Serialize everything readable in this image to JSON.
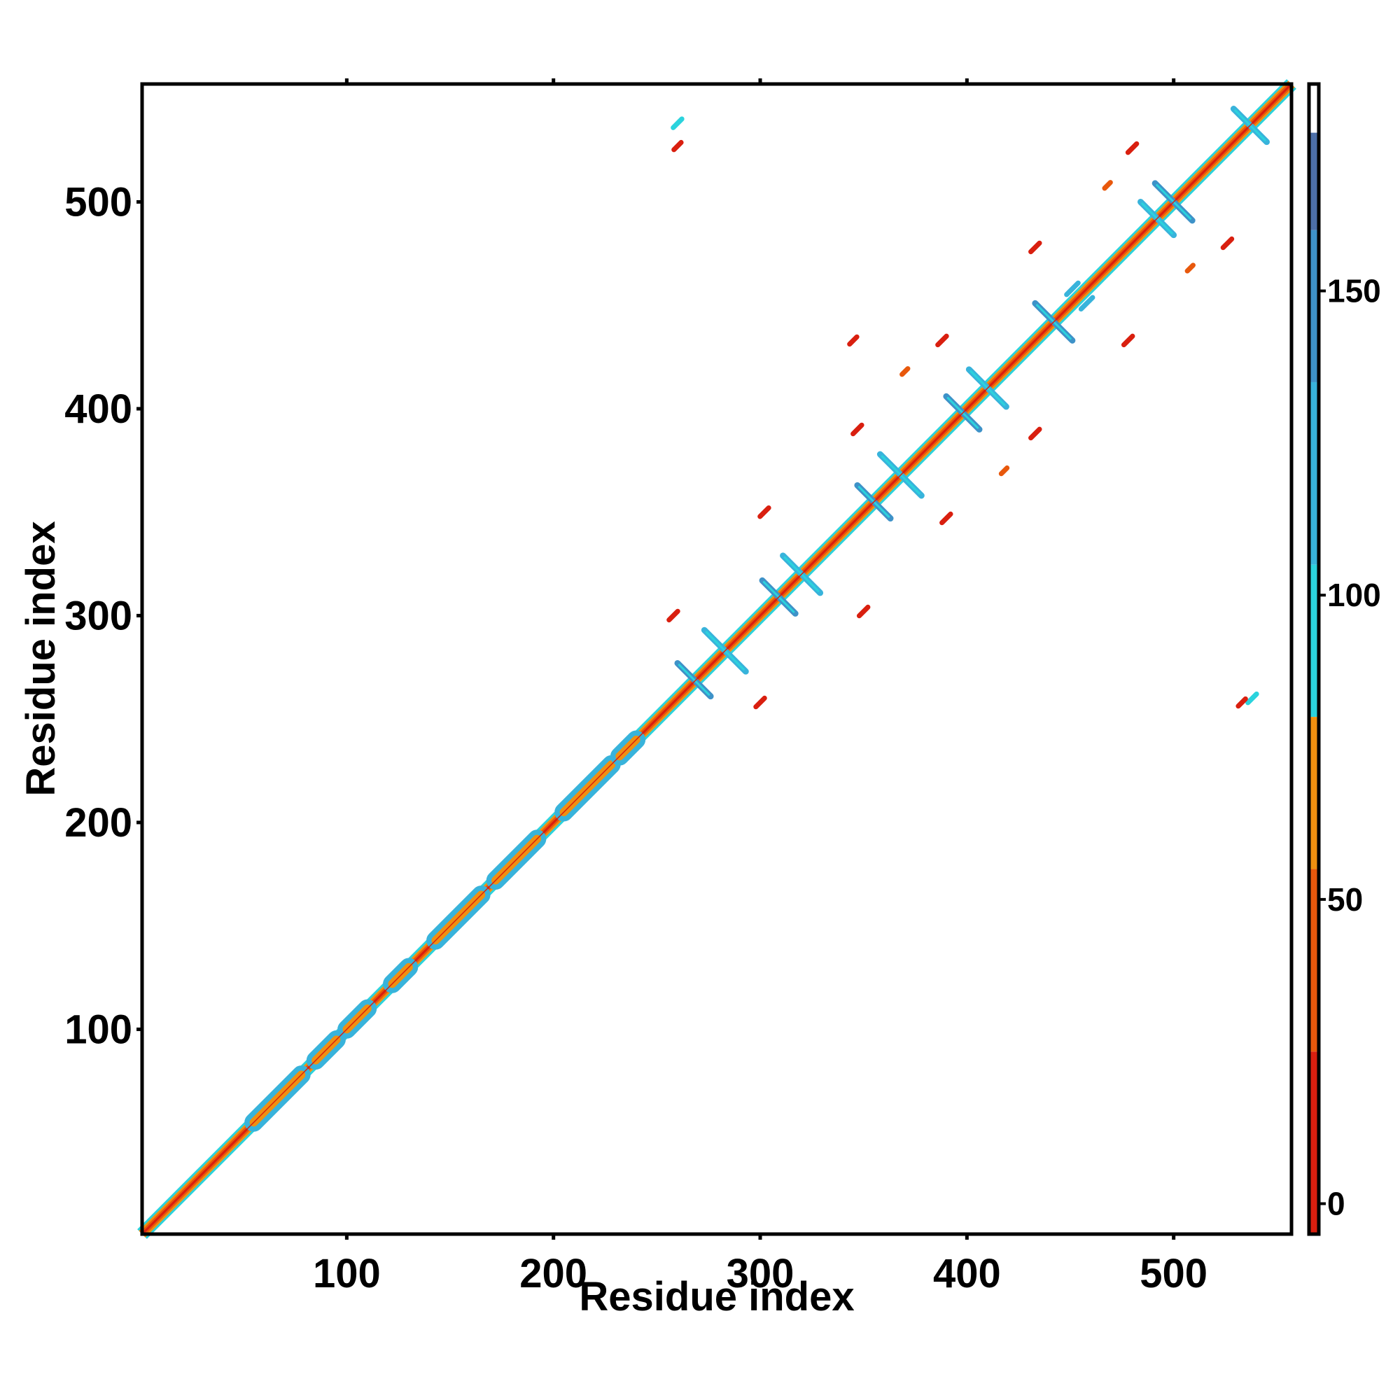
{
  "chart_data": {
    "type": "heatmap",
    "title": "",
    "xlabel": "Residue index",
    "ylabel": "Residue index",
    "xlim": [
      1,
      557
    ],
    "ylim": [
      1,
      557
    ],
    "x_ticks": [
      100,
      200,
      300,
      400,
      500
    ],
    "y_ticks": [
      100,
      200,
      300,
      400,
      500
    ],
    "colorbar": {
      "range": [
        -5,
        184
      ],
      "ticks": [
        0,
        50,
        100,
        150
      ],
      "bands": [
        {
          "from": -5,
          "to": 25,
          "color": "#d91f0f"
        },
        {
          "from": 25,
          "to": 55,
          "color": "#e8580c"
        },
        {
          "from": 55,
          "to": 80,
          "color": "#f09010"
        },
        {
          "from": 80,
          "to": 105,
          "color": "#2bd3dd"
        },
        {
          "from": 105,
          "to": 135,
          "color": "#38b3db"
        },
        {
          "from": 135,
          "to": 160,
          "color": "#3e92c8"
        },
        {
          "from": 160,
          "to": 176,
          "color": "#4d6fa8"
        },
        {
          "from": 176,
          "to": 184,
          "color": "#ffffff"
        }
      ]
    },
    "diagonal_band": {
      "from": 1,
      "to": 557,
      "width": 3
    },
    "helix_segments": [
      {
        "start": 55,
        "end": 78
      },
      {
        "start": 85,
        "end": 95
      },
      {
        "start": 100,
        "end": 110
      },
      {
        "start": 122,
        "end": 130
      },
      {
        "start": 143,
        "end": 165
      },
      {
        "start": 172,
        "end": 192
      },
      {
        "start": 205,
        "end": 228
      },
      {
        "start": 232,
        "end": 240
      }
    ],
    "antiparallel_crosses": [
      {
        "x": 268,
        "y": 269,
        "len": 16,
        "value": 140
      },
      {
        "x": 283,
        "y": 283,
        "len": 20,
        "value": 130
      },
      {
        "x": 309,
        "y": 309,
        "len": 16,
        "value": 140
      },
      {
        "x": 320,
        "y": 320,
        "len": 18,
        "value": 130
      },
      {
        "x": 355,
        "y": 355,
        "len": 16,
        "value": 140
      },
      {
        "x": 368,
        "y": 368,
        "len": 20,
        "value": 130
      },
      {
        "x": 398,
        "y": 398,
        "len": 16,
        "value": 140
      },
      {
        "x": 410,
        "y": 410,
        "len": 18,
        "value": 130
      },
      {
        "x": 442,
        "y": 442,
        "len": 18,
        "value": 140
      },
      {
        "x": 492,
        "y": 492,
        "len": 16,
        "value": 130
      },
      {
        "x": 500,
        "y": 500,
        "len": 18,
        "value": 140
      },
      {
        "x": 537,
        "y": 537,
        "len": 16,
        "value": 130
      }
    ],
    "offdiag_blobs": [
      {
        "x": 260,
        "y": 538,
        "len": 6,
        "value": 100
      },
      {
        "x": 260,
        "y": 527,
        "len": 5,
        "value": 10
      },
      {
        "x": 538,
        "y": 260,
        "len": 6,
        "value": 100
      },
      {
        "x": 533,
        "y": 258,
        "len": 5,
        "value": 10
      },
      {
        "x": 258,
        "y": 300,
        "len": 6,
        "value": 10
      },
      {
        "x": 300,
        "y": 258,
        "len": 6,
        "value": 10
      },
      {
        "x": 302,
        "y": 350,
        "len": 6,
        "value": 10
      },
      {
        "x": 350,
        "y": 302,
        "len": 6,
        "value": 10
      },
      {
        "x": 347,
        "y": 390,
        "len": 6,
        "value": 10
      },
      {
        "x": 390,
        "y": 347,
        "len": 6,
        "value": 10
      },
      {
        "x": 345,
        "y": 433,
        "len": 5,
        "value": 10
      },
      {
        "x": 433,
        "y": 388,
        "len": 6,
        "value": 10
      },
      {
        "x": 388,
        "y": 433,
        "len": 6,
        "value": 10
      },
      {
        "x": 433,
        "y": 478,
        "len": 6,
        "value": 10
      },
      {
        "x": 478,
        "y": 433,
        "len": 6,
        "value": 10
      },
      {
        "x": 480,
        "y": 526,
        "len": 6,
        "value": 10
      },
      {
        "x": 526,
        "y": 480,
        "len": 6,
        "value": 10
      },
      {
        "x": 458,
        "y": 451,
        "len": 8,
        "value": 130
      },
      {
        "x": 451,
        "y": 458,
        "len": 8,
        "value": 130
      },
      {
        "x": 370,
        "y": 418,
        "len": 4,
        "value": 40
      },
      {
        "x": 418,
        "y": 370,
        "len": 4,
        "value": 40
      },
      {
        "x": 508,
        "y": 468,
        "len": 4,
        "value": 40
      },
      {
        "x": 468,
        "y": 508,
        "len": 4,
        "value": 40
      }
    ]
  }
}
